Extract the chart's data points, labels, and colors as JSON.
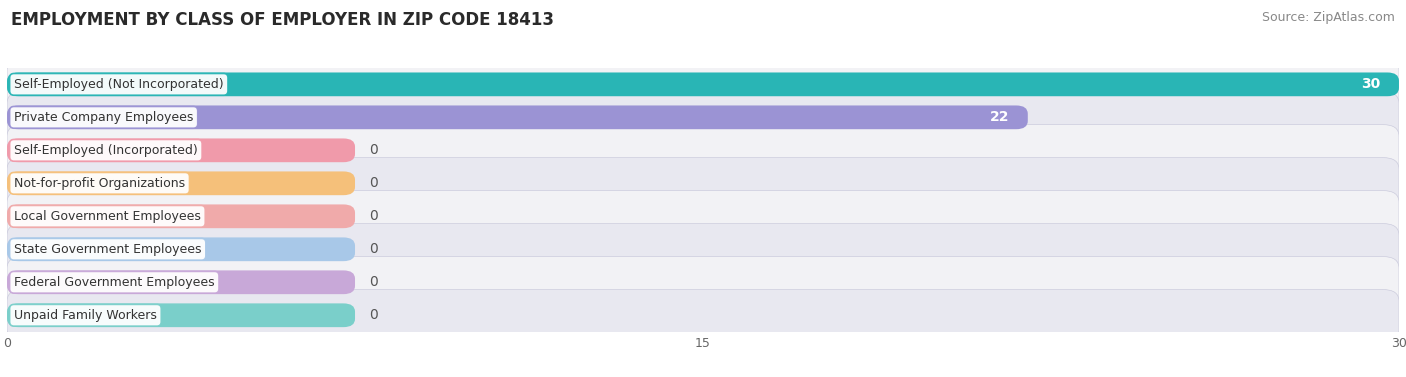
{
  "title": "EMPLOYMENT BY CLASS OF EMPLOYER IN ZIP CODE 18413",
  "source": "Source: ZipAtlas.com",
  "categories": [
    "Self-Employed (Not Incorporated)",
    "Private Company Employees",
    "Self-Employed (Incorporated)",
    "Not-for-profit Organizations",
    "Local Government Employees",
    "State Government Employees",
    "Federal Government Employees",
    "Unpaid Family Workers"
  ],
  "values": [
    30,
    22,
    0,
    0,
    0,
    0,
    0,
    0
  ],
  "bar_colors": [
    "#29b5b5",
    "#9b93d4",
    "#f09aaa",
    "#f5c07a",
    "#f0aaaa",
    "#a8c8e8",
    "#c8a8d8",
    "#7acfca"
  ],
  "xlim": [
    0,
    30
  ],
  "xticks": [
    0,
    15,
    30
  ],
  "background_color": "#ffffff",
  "row_bg_light": "#f2f2f5",
  "row_bg_dark": "#e8e8f0",
  "title_fontsize": 12,
  "bar_label_fontsize": 10,
  "category_fontsize": 9,
  "source_fontsize": 9
}
